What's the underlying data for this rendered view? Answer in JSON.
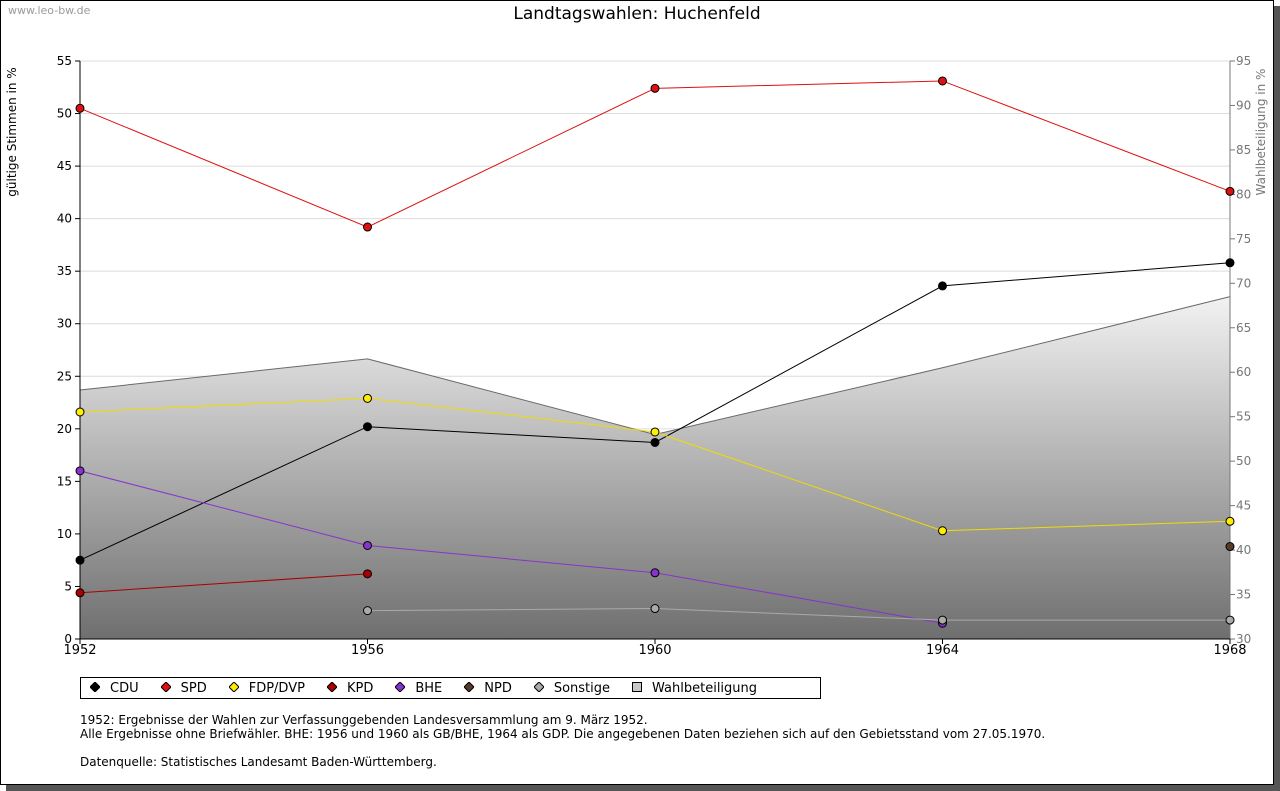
{
  "watermark": "www.leo-bw.de",
  "chart_data": {
    "type": "line",
    "title": "Landtagswahlen: Huchenfeld",
    "ylabel": "gültige Stimmen in %",
    "ylabel_right": "Wahlbeteiligung in %",
    "x": [
      1952,
      1956,
      1960,
      1964,
      1968
    ],
    "x_tick_labels": [
      "1952",
      "1956",
      "1960",
      "1964",
      "1968"
    ],
    "ylim": [
      0,
      55
    ],
    "y_ticks": [
      0,
      5,
      10,
      15,
      20,
      25,
      30,
      35,
      40,
      45,
      50,
      55
    ],
    "ylim_right": [
      30,
      95
    ],
    "y_ticks_right": [
      30,
      35,
      40,
      45,
      50,
      55,
      60,
      65,
      70,
      75,
      80,
      85,
      90,
      95
    ],
    "grid": true,
    "legend_position": "bottom-left",
    "series": [
      {
        "name": "CDU",
        "color": "#000000",
        "values": [
          7.5,
          20.2,
          18.7,
          33.6,
          35.8
        ]
      },
      {
        "name": "SPD",
        "color": "#dd1111",
        "values": [
          50.5,
          39.2,
          52.4,
          53.1,
          42.6
        ]
      },
      {
        "name": "FDP/DVP",
        "color": "#ffee00",
        "values": [
          21.6,
          22.9,
          19.7,
          10.3,
          11.2
        ]
      },
      {
        "name": "KPD",
        "color": "#aa0000",
        "values": [
          4.4,
          6.2,
          null,
          null,
          null
        ]
      },
      {
        "name": "BHE",
        "color": "#8833cc",
        "values": [
          16.0,
          8.9,
          6.3,
          1.5,
          null
        ]
      },
      {
        "name": "NPD",
        "color": "#5a3a2a",
        "values": [
          null,
          null,
          null,
          null,
          8.8
        ]
      },
      {
        "name": "Sonstige",
        "color": "#aaaaaa",
        "values": [
          null,
          2.7,
          2.9,
          1.8,
          1.8
        ]
      }
    ],
    "area_series": {
      "name": "Wahlbeteiligung",
      "axis": "right",
      "values": [
        58.0,
        61.5,
        53.0,
        60.5,
        68.5
      ]
    }
  },
  "notes": [
    "1952: Ergebnisse der Wahlen zur Verfassunggebenden Landesversammlung am 9. März 1952.",
    "Alle Ergebnisse ohne Briefwähler. BHE: 1956 und 1960 als GB/BHE, 1964 als GDP. Die angegebenen Daten beziehen sich auf den Gebietsstand vom 27.05.1970.",
    "",
    "Datenquelle: Statistisches Landesamt Baden-Württemberg."
  ]
}
